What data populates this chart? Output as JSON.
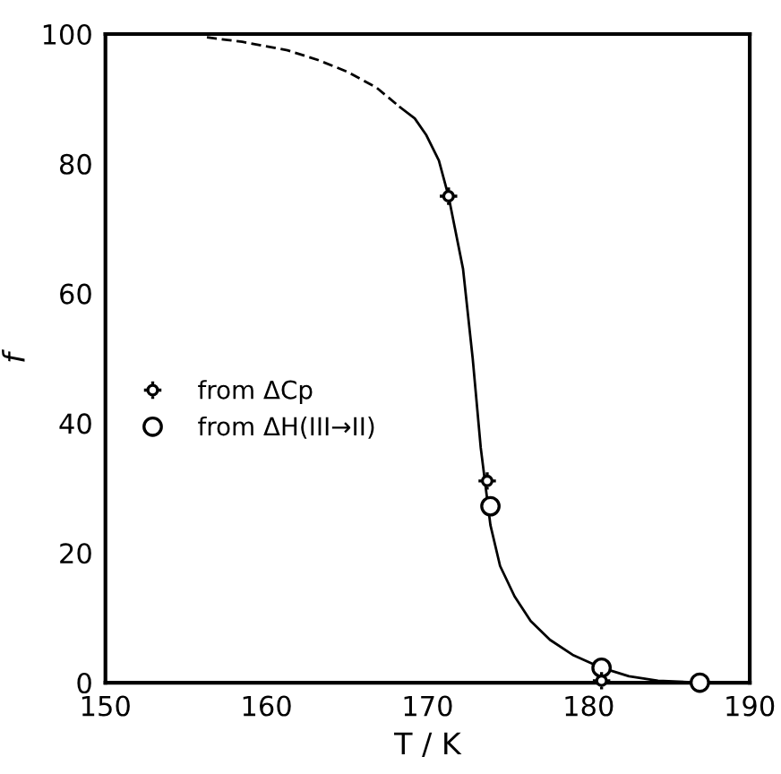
{
  "chart_data": {
    "type": "line",
    "xlabel": "T / K",
    "ylabel": "f",
    "xlim": [
      150,
      190
    ],
    "ylim": [
      0,
      100
    ],
    "xticks": [
      150,
      160,
      170,
      180,
      190
    ],
    "yticks": [
      0,
      20,
      40,
      60,
      80,
      100
    ],
    "grid": false,
    "legend": "left",
    "series": [
      {
        "line_style": "dashed",
        "marker": "none",
        "color": "#000000",
        "x": [
          156.3,
          158.5,
          161.3,
          163.2,
          165.0,
          166.8,
          168.3
        ],
        "values": [
          99.5,
          98.8,
          97.5,
          96.0,
          94.2,
          91.8,
          88.7
        ]
      },
      {
        "line_style": "solid",
        "marker": "none",
        "color": "#000000",
        "x": [
          168.3,
          169.2,
          169.9,
          170.7,
          171.3,
          172.2,
          172.8,
          173.3,
          173.9,
          174.5,
          175.4,
          176.4,
          177.6,
          179.0,
          180.8,
          182.5,
          184.3,
          186.9
        ],
        "values": [
          88.7,
          87.0,
          84.5,
          80.5,
          75,
          63.8,
          50,
          36.2,
          24.3,
          18.0,
          13.3,
          9.5,
          6.6,
          4.3,
          2.3,
          1.0,
          0.3,
          0
        ]
      },
      {
        "type": "scatter",
        "name": "from ΔCp",
        "marker": "cross",
        "color": "#000000",
        "x": [
          171.3,
          173.7,
          180.8
        ],
        "values": [
          75,
          31.1,
          0.3
        ]
      },
      {
        "type": "scatter",
        "name": "from ΔH(III→II)",
        "marker": "circle",
        "color": "#000000",
        "x": [
          173.9,
          180.8,
          186.9
        ],
        "values": [
          27.2,
          2.3,
          0
        ]
      }
    ]
  }
}
